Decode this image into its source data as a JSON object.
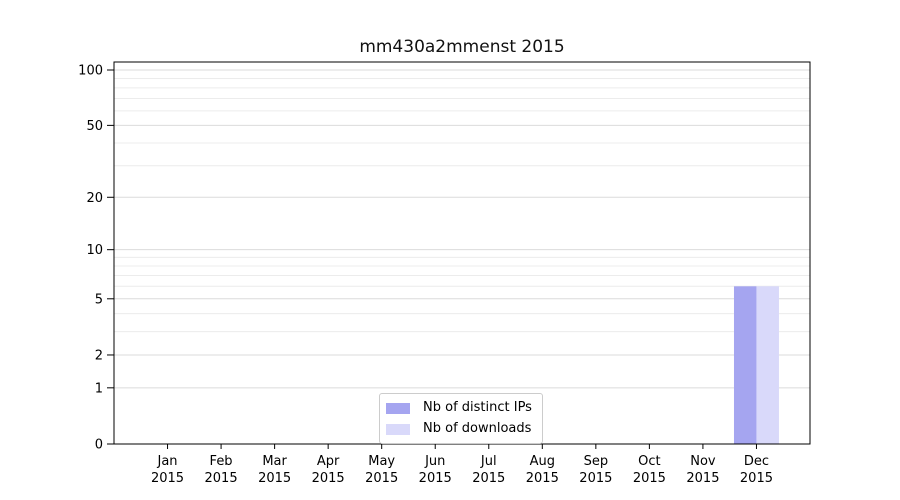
{
  "chart_data": {
    "type": "bar",
    "title": "mm430a2mmenst 2015",
    "categories": [
      "Jan",
      "Feb",
      "Mar",
      "Apr",
      "May",
      "Jun",
      "Jul",
      "Aug",
      "Sep",
      "Oct",
      "Nov",
      "Dec"
    ],
    "category_sublabel": "2015",
    "series": [
      {
        "name": "Nb of distinct IPs",
        "color": "#a5a5f0",
        "values": [
          0,
          0,
          0,
          0,
          0,
          0,
          0,
          0,
          0,
          0,
          0,
          6
        ]
      },
      {
        "name": "Nb of downloads",
        "color": "#d9d9fa",
        "values": [
          0,
          0,
          0,
          0,
          0,
          0,
          0,
          0,
          0,
          0,
          0,
          6
        ]
      }
    ],
    "xlabel": "",
    "ylabel": "",
    "yscale": "log1p",
    "ylim": [
      0,
      110
    ],
    "yticks_major": [
      0,
      1,
      2,
      5,
      10,
      20,
      50,
      100
    ],
    "yticks_minor": [
      3,
      4,
      6,
      7,
      8,
      9,
      30,
      40,
      60,
      70,
      80,
      90
    ],
    "grid": true,
    "legend_position": "inside-bottom-center",
    "colors": {
      "grid_major": "#dbdbdb",
      "grid_minor": "#ececec",
      "axis": "#000000",
      "text": "#000000",
      "background": "#ffffff"
    }
  }
}
